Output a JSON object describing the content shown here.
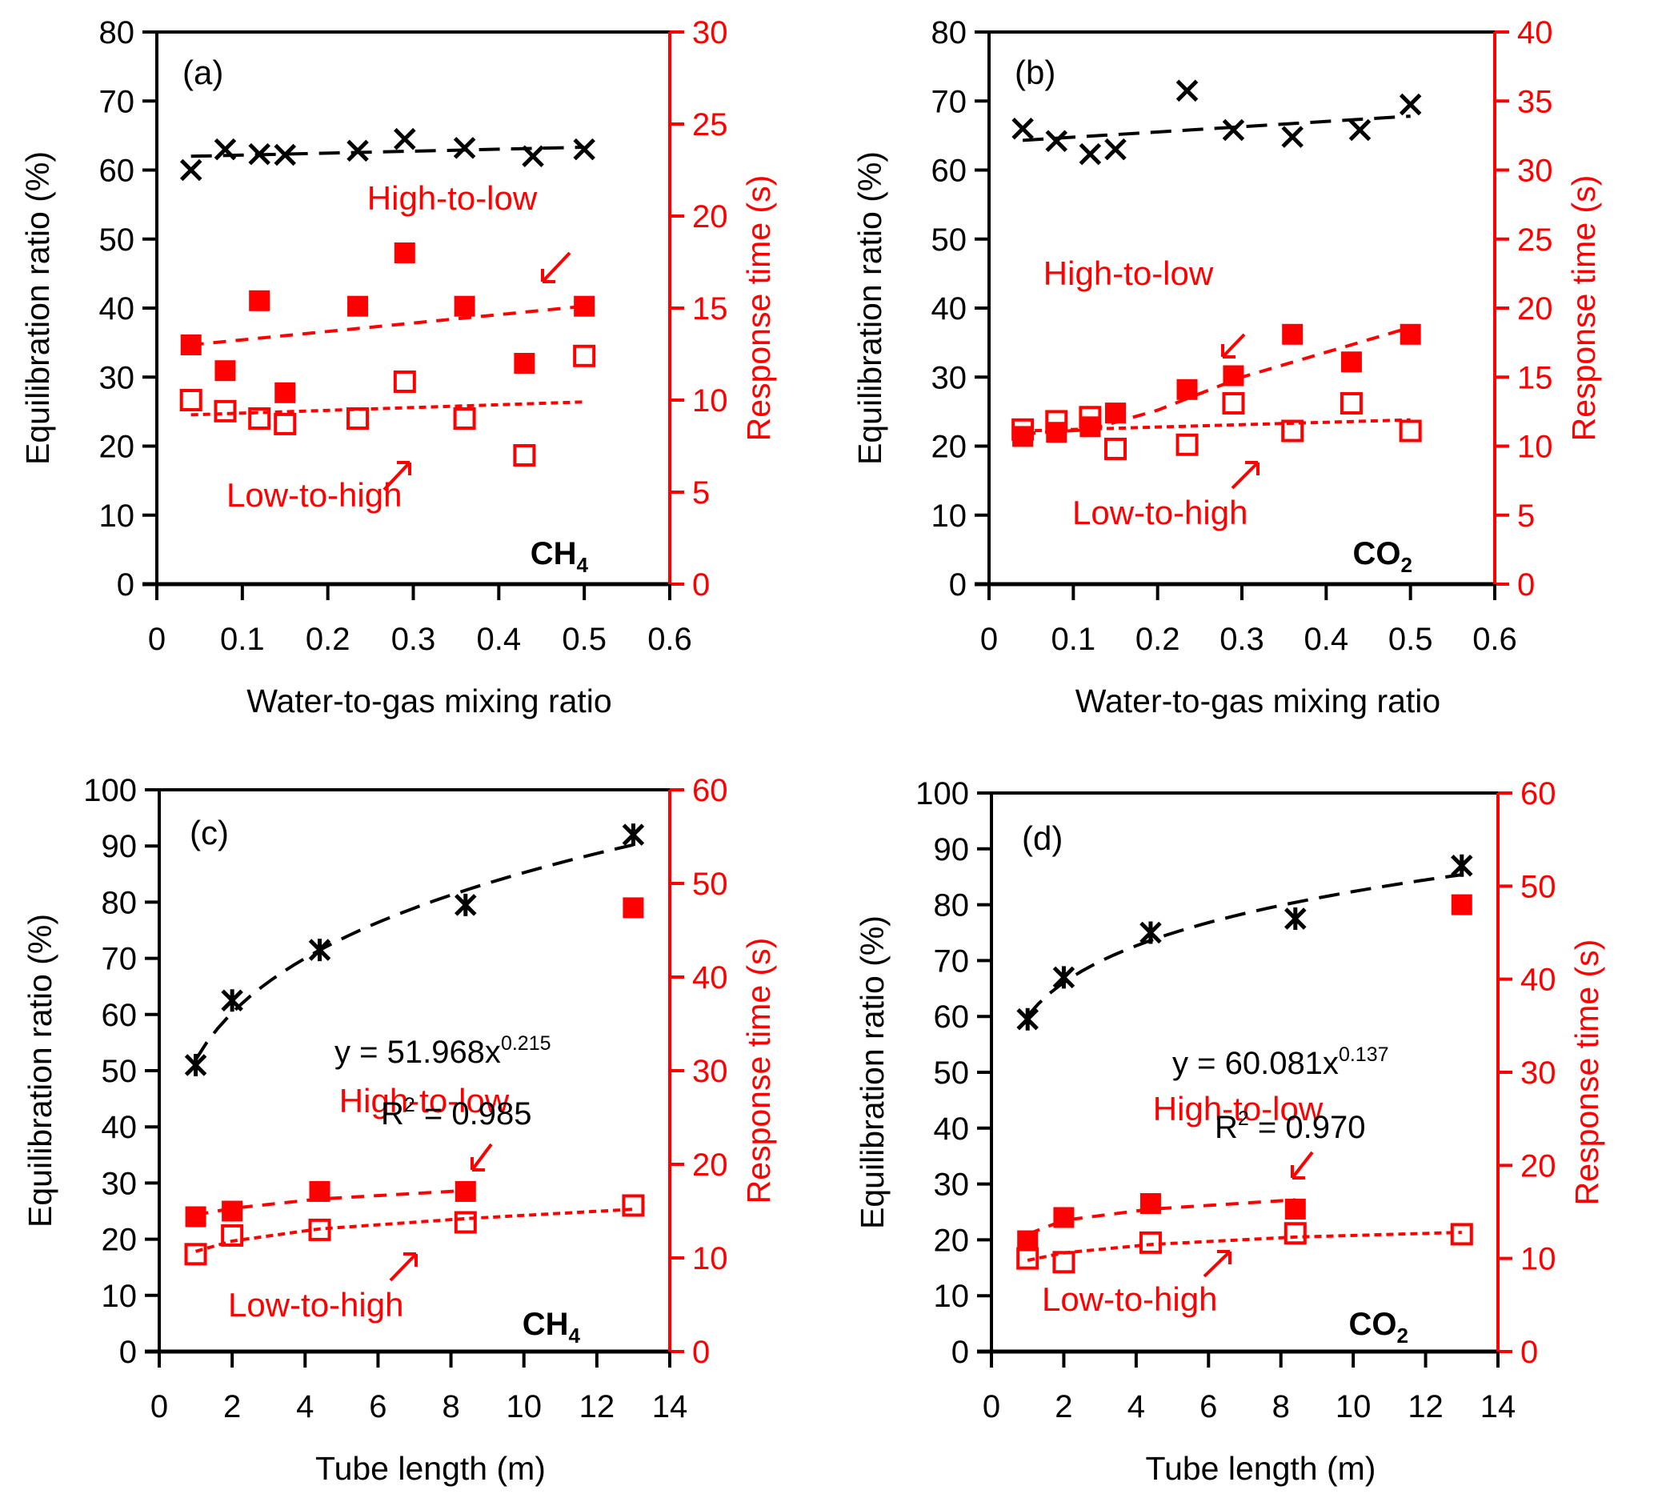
{
  "colors": {
    "black": "#000000",
    "red": "#ff0000"
  },
  "chart_data": [
    {
      "type": "scatter",
      "panel": "(a)",
      "gas_label": "CH",
      "gas_sub": "4",
      "xlabel": "Water-to-gas  mixing ratio",
      "ylabel_left": "Equilibration ratio (%)",
      "ylabel_right": "Response time (s)",
      "xlim": [
        0,
        0.6
      ],
      "ylim_left": [
        0,
        80
      ],
      "ylim_right": [
        0,
        30
      ],
      "x_ticks": [
        0,
        0.1,
        0.2,
        0.3,
        0.4,
        0.5,
        0.6
      ],
      "x_tick_labels": [
        "0",
        "0.1",
        "0.2",
        "0.3",
        "0.4",
        "0.5",
        "0.6"
      ],
      "y_left_ticks": [
        0,
        10,
        20,
        30,
        40,
        50,
        60,
        70,
        80
      ],
      "y_right_ticks": [
        0,
        5,
        10,
        15,
        20,
        25,
        30
      ],
      "annotations": {
        "high_to_low": "High-to-low",
        "low_to_high": "Low-to-high"
      },
      "series": [
        {
          "name": "Equilibration ratio",
          "axis": "left",
          "marker": "x",
          "color": "#000000",
          "x": [
            0.04,
            0.08,
            0.12,
            0.15,
            0.235,
            0.29,
            0.36,
            0.44,
            0.5
          ],
          "y": [
            60,
            63,
            62.3,
            62.2,
            62.8,
            64.5,
            63.2,
            62,
            63
          ],
          "trend": {
            "type": "linear",
            "from": [
              0.04,
              62
            ],
            "to": [
              0.5,
              63.3
            ]
          }
        },
        {
          "name": "High-to-low",
          "axis": "right",
          "marker": "filled-square",
          "color": "#ff0000",
          "x": [
            0.04,
            0.08,
            0.12,
            0.15,
            0.235,
            0.29,
            0.36,
            0.43,
            0.5
          ],
          "y": [
            13,
            11.6,
            15.4,
            10.4,
            15.1,
            18,
            15.1,
            12,
            15.1
          ],
          "trend": {
            "type": "linear",
            "from": [
              0.04,
              13
            ],
            "to": [
              0.5,
              15.1
            ]
          }
        },
        {
          "name": "Low-to-high",
          "axis": "right",
          "marker": "open-square",
          "color": "#ff0000",
          "x": [
            0.04,
            0.08,
            0.12,
            0.15,
            0.235,
            0.29,
            0.36,
            0.43,
            0.5
          ],
          "y": [
            10,
            9.4,
            9,
            8.7,
            9,
            11,
            9,
            7,
            12.4
          ],
          "trend": {
            "type": "linear",
            "from": [
              0.04,
              9.2
            ],
            "to": [
              0.5,
              9.9
            ]
          }
        }
      ]
    },
    {
      "type": "scatter",
      "panel": "(b)",
      "gas_label": "CO",
      "gas_sub": "2",
      "xlabel": "Water-to-gas  mixing ratio",
      "ylabel_left": "Equilibration ratio (%)",
      "ylabel_right": "Response time (s)",
      "xlim": [
        0,
        0.6
      ],
      "ylim_left": [
        0,
        80
      ],
      "ylim_right": [
        0,
        40
      ],
      "x_ticks": [
        0,
        0.1,
        0.2,
        0.3,
        0.4,
        0.5,
        0.6
      ],
      "x_tick_labels": [
        "0",
        "0.1",
        "0.2",
        "0.3",
        "0.4",
        "0.5",
        "0.6"
      ],
      "y_left_ticks": [
        0,
        10,
        20,
        30,
        40,
        50,
        60,
        70,
        80
      ],
      "y_right_ticks": [
        0,
        5,
        10,
        15,
        20,
        25,
        30,
        35,
        40
      ],
      "annotations": {
        "high_to_low": "High-to-low",
        "low_to_high": "Low-to-high"
      },
      "series": [
        {
          "name": "Equilibration ratio",
          "axis": "left",
          "marker": "x",
          "color": "#000000",
          "x": [
            0.04,
            0.08,
            0.12,
            0.15,
            0.235,
            0.29,
            0.36,
            0.44,
            0.5
          ],
          "y": [
            66,
            64.2,
            62.3,
            63,
            71.5,
            65.8,
            64.8,
            65.8,
            69.5
          ],
          "trend": {
            "type": "linear",
            "from": [
              0.04,
              64.3
            ],
            "to": [
              0.5,
              67.8
            ]
          }
        },
        {
          "name": "High-to-low",
          "axis": "right",
          "marker": "filled-square",
          "color": "#ff0000",
          "x": [
            0.04,
            0.08,
            0.12,
            0.15,
            0.235,
            0.29,
            0.36,
            0.43,
            0.5
          ],
          "y": [
            10.7,
            11,
            11.4,
            12.4,
            14.1,
            15.1,
            18.1,
            16.1,
            18.1
          ],
          "trend": {
            "type": "quadratic",
            "points": [
              [
                0.04,
                10.9
              ],
              [
                0.12,
                11.2
              ],
              [
                0.2,
                12.6
              ],
              [
                0.3,
                15
              ],
              [
                0.4,
                16.8
              ],
              [
                0.5,
                18.6
              ]
            ]
          }
        },
        {
          "name": "Low-to-high",
          "axis": "right",
          "marker": "open-square",
          "color": "#ff0000",
          "x": [
            0.04,
            0.08,
            0.12,
            0.15,
            0.235,
            0.29,
            0.36,
            0.43,
            0.5
          ],
          "y": [
            11.2,
            11.8,
            12.1,
            9.8,
            10.1,
            13.1,
            11.1,
            13.1,
            11.1
          ],
          "trend": {
            "type": "linear",
            "from": [
              0.04,
              11.1
            ],
            "to": [
              0.5,
              11.9
            ]
          }
        }
      ]
    },
    {
      "type": "scatter",
      "panel": "(c)",
      "gas_label": "CH",
      "gas_sub": "4",
      "xlabel": "Tube length (m)",
      "ylabel_left": "Equilibration ratio (%)",
      "ylabel_right": "Response time (s)",
      "xlim": [
        0,
        14
      ],
      "ylim_left": [
        0,
        100
      ],
      "ylim_right": [
        0,
        60
      ],
      "x_ticks": [
        0,
        2,
        4,
        6,
        8,
        10,
        12,
        14
      ],
      "x_tick_labels": [
        "0",
        "2",
        "4",
        "6",
        "8",
        "10",
        "12",
        "14"
      ],
      "y_left_ticks": [
        0,
        10,
        20,
        30,
        40,
        50,
        60,
        70,
        80,
        90,
        100
      ],
      "y_right_ticks": [
        0,
        10,
        20,
        30,
        40,
        50,
        60
      ],
      "fit_equation": "y = 51.968x",
      "fit_exponent": "0.215",
      "fit_r2_label": "R",
      "fit_r2_value": " = 0.985",
      "annotations": {
        "high_to_low": "High-to-low",
        "low_to_high": "Low-to-high"
      },
      "series": [
        {
          "name": "Equilibration ratio",
          "axis": "left",
          "marker": "asterisk",
          "color": "#000000",
          "x": [
            1,
            2,
            4.4,
            8.4,
            13
          ],
          "y": [
            51,
            62.5,
            71.5,
            79.5,
            92
          ],
          "trend": {
            "type": "power",
            "a": 51.968,
            "b": 0.215,
            "range": [
              1,
              13
            ]
          }
        },
        {
          "name": "High-to-low",
          "axis": "right",
          "marker": "filled-square",
          "color": "#ff0000",
          "x": [
            1,
            2,
            4.4,
            8.4,
            13
          ],
          "y": [
            14.4,
            15,
            17.1,
            17.1,
            47.4
          ],
          "trend": {
            "type": "log",
            "points": [
              [
                1,
                14.6
              ],
              [
                2,
                15.3
              ],
              [
                4.4,
                16.3
              ],
              [
                8.4,
                17.2
              ]
            ]
          }
        },
        {
          "name": "Low-to-high",
          "axis": "right",
          "marker": "open-square",
          "color": "#ff0000",
          "x": [
            1,
            2,
            4.4,
            8.4,
            13
          ],
          "y": [
            10.4,
            12.4,
            13,
            13.8,
            15.6
          ],
          "trend": {
            "type": "log",
            "points": [
              [
                1,
                10.7
              ],
              [
                2,
                11.8
              ],
              [
                4.4,
                13.1
              ],
              [
                8.4,
                14.2
              ],
              [
                13,
                15.2
              ]
            ]
          }
        }
      ]
    },
    {
      "type": "scatter",
      "panel": "(d)",
      "gas_label": "CO",
      "gas_sub": "2",
      "xlabel": "Tube length (m)",
      "ylabel_left": "Equilibration ratio (%)",
      "ylabel_right": "Response time (s)",
      "xlim": [
        0,
        14
      ],
      "ylim_left": [
        0,
        100
      ],
      "ylim_right": [
        0,
        60
      ],
      "x_ticks": [
        0,
        2,
        4,
        6,
        8,
        10,
        12,
        14
      ],
      "x_tick_labels": [
        "0",
        "2",
        "4",
        "6",
        "8",
        "10",
        "12",
        "14"
      ],
      "y_left_ticks": [
        0,
        10,
        20,
        30,
        40,
        50,
        60,
        70,
        80,
        90,
        100
      ],
      "y_right_ticks": [
        0,
        10,
        20,
        30,
        40,
        50,
        60
      ],
      "fit_equation": "y = 60.081x",
      "fit_exponent": "0.137",
      "fit_r2_label": "R",
      "fit_r2_value": " = 0.970",
      "annotations": {
        "high_to_low": "High-to-low",
        "low_to_high": "Low-to-high"
      },
      "series": [
        {
          "name": "Equilibration ratio",
          "axis": "left",
          "marker": "asterisk",
          "color": "#000000",
          "x": [
            1,
            2,
            4.4,
            8.4,
            13
          ],
          "y": [
            59.5,
            67,
            75,
            77.5,
            87
          ],
          "trend": {
            "type": "power",
            "a": 60.081,
            "b": 0.137,
            "range": [
              1,
              13
            ]
          }
        },
        {
          "name": "High-to-low",
          "axis": "right",
          "marker": "filled-square",
          "color": "#ff0000",
          "x": [
            1,
            2,
            4.4,
            8.4,
            13
          ],
          "y": [
            11.9,
            14.4,
            15.9,
            15.3,
            48
          ],
          "trend": {
            "type": "log",
            "points": [
              [
                1,
                12.6
              ],
              [
                2,
                14.1
              ],
              [
                4.4,
                15.3
              ],
              [
                8.4,
                16.3
              ]
            ]
          }
        },
        {
          "name": "Low-to-high",
          "axis": "right",
          "marker": "open-square",
          "color": "#ff0000",
          "x": [
            1,
            2,
            4.4,
            8.4,
            13
          ],
          "y": [
            10,
            9.6,
            11.7,
            12.7,
            12.6
          ],
          "trend": {
            "type": "log",
            "points": [
              [
                1,
                9.8
              ],
              [
                2,
                10.6
              ],
              [
                4.4,
                11.5
              ],
              [
                8.4,
                12.3
              ],
              [
                13,
                12.8
              ]
            ]
          }
        }
      ]
    }
  ]
}
